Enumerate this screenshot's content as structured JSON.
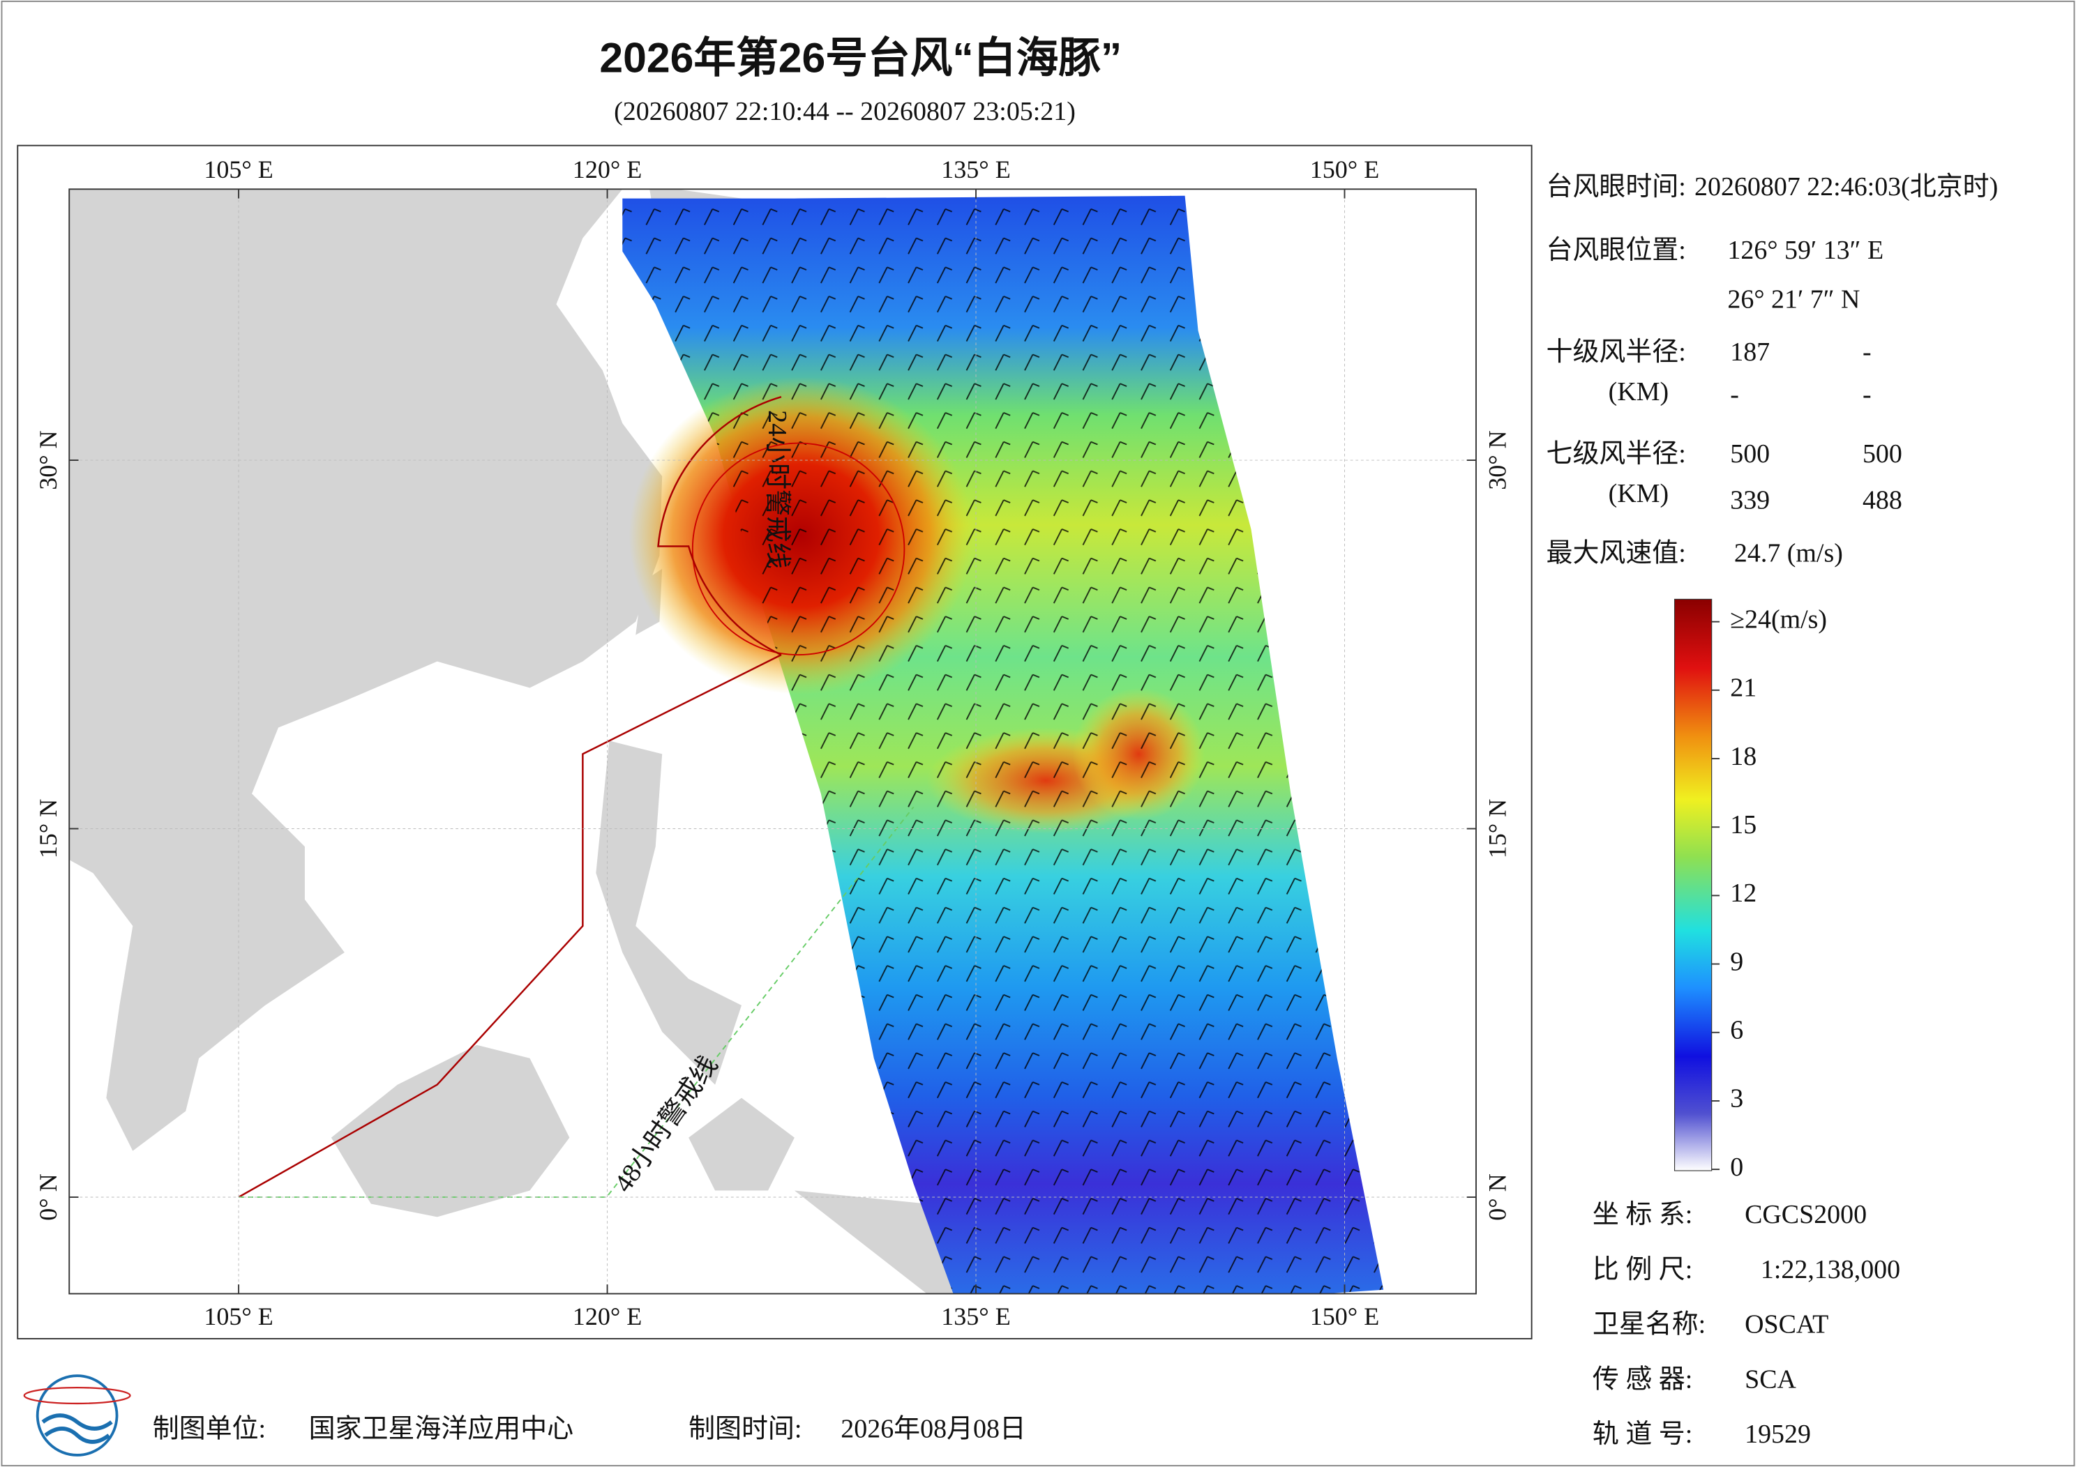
{
  "header": {
    "title": "2026年第26号台风“白海豚”",
    "subtitle": "(20260807 22:10:44 -- 20260807 23:05:21)"
  },
  "map": {
    "lon_ticks": [
      {
        "value": 105,
        "label": "105° E"
      },
      {
        "value": 120,
        "label": "120° E"
      },
      {
        "value": 135,
        "label": "135° E"
      },
      {
        "value": 150,
        "label": "150° E"
      }
    ],
    "lat_ticks": [
      {
        "value": 30,
        "label": "30° N"
      },
      {
        "value": 15,
        "label": "15° N"
      },
      {
        "value": 0,
        "label": "0° N"
      }
    ],
    "line_24h_label": "24小时警戒线",
    "line_48h_label": "48小时警戒线"
  },
  "info": {
    "eye_time_label": "台风眼时间:",
    "eye_time": "20260807 22:46:03(北京时)",
    "eye_pos_label": "台风眼位置:",
    "eye_lon": "126° 59′ 13″ E",
    "eye_lat": "26° 21′ 7″ N",
    "r10_label": "十级风半径:",
    "r10_unit": "(KM)",
    "r10": [
      "187",
      "-",
      "-",
      "-"
    ],
    "r7_label": "七级风半径:",
    "r7_unit": "(KM)",
    "r7": [
      "500",
      "500",
      "339",
      "488"
    ],
    "max_label": "最大风速值:",
    "max": "24.7  (m/s)"
  },
  "colorbar": {
    "ticks": [
      {
        "value": 24,
        "label": "≥24(m/s)"
      },
      21,
      18,
      15,
      12,
      9,
      6,
      3,
      0
    ]
  },
  "meta": [
    {
      "label": "坐 标 系:",
      "value": "CGCS2000"
    },
    {
      "label": "比 例 尺:",
      "value": "1:22,138,000"
    },
    {
      "label": "卫星名称:",
      "value": "OSCAT"
    },
    {
      "label": "传 感 器:",
      "value": "SCA"
    },
    {
      "label": "轨 道 号:",
      "value": "19529"
    }
  ],
  "footer": {
    "unit_label": "制图单位:",
    "unit": "国家卫星海洋应用中心",
    "time_label": "制图时间:",
    "time": "2026年08月08日"
  }
}
